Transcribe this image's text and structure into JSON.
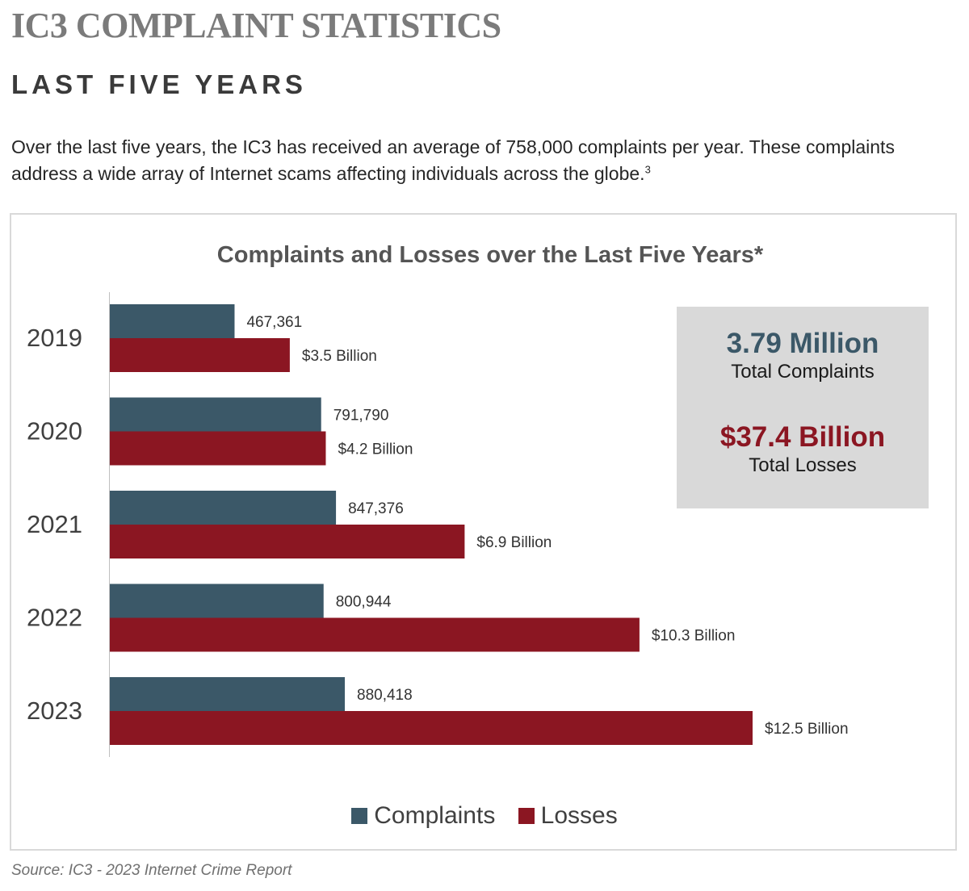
{
  "header": {
    "title": "IC3 COMPLAINT STATISTICS",
    "subtitle": "LAST FIVE YEARS",
    "intro_text": "Over the last five years, the IC3 has received an average of 758,000 complaints per year. These complaints address a wide array of Internet scams affecting individuals across the globe.",
    "intro_footnote": "3"
  },
  "totals": {
    "complaints_value": "3.79 Million",
    "complaints_label": "Total Complaints",
    "losses_value": "$37.4 Billion",
    "losses_label": "Total Losses"
  },
  "colors": {
    "complaints": "#3b5868",
    "losses": "#8b1622"
  },
  "source": "Source: IC3 - 2023 Internet Crime Report",
  "chart_data": {
    "type": "bar",
    "orientation": "horizontal",
    "title": "Complaints and Losses over the Last Five Years*",
    "categories": [
      "2019",
      "2020",
      "2021",
      "2022",
      "2023"
    ],
    "series": [
      {
        "name": "Complaints",
        "values": [
          467361,
          791790,
          847376,
          800944,
          880418
        ],
        "labels": [
          "467,361",
          "791,790",
          "847,376",
          "800,944",
          "880,418"
        ]
      },
      {
        "name": "Losses",
        "unit": "billion USD",
        "values": [
          3.5,
          4.2,
          6.9,
          10.3,
          12.5
        ],
        "labels": [
          "$3.5 Billion",
          "$4.2 Billion",
          "$6.9 Billion",
          "$10.3 Billion",
          "$12.5 Billion"
        ]
      }
    ],
    "legend": "bottom",
    "grid": false
  }
}
